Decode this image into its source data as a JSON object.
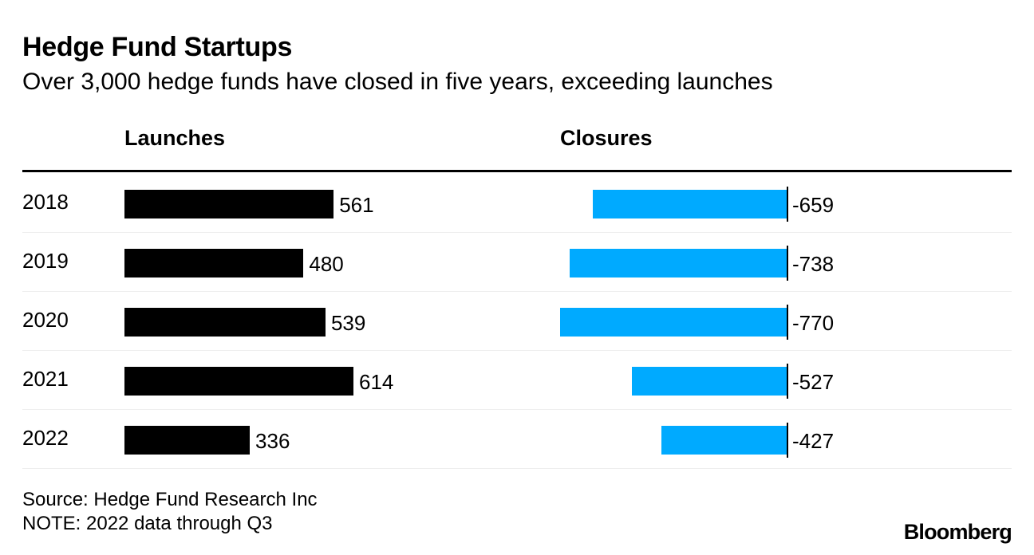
{
  "chart_data": {
    "type": "bar",
    "title": "Hedge Fund Startups",
    "subtitle": "Over 3,000 hedge funds have closed in five years, exceeding launches",
    "categories": [
      "2018",
      "2019",
      "2020",
      "2021",
      "2022"
    ],
    "series": [
      {
        "name": "Launches",
        "values": [
          561,
          480,
          539,
          614,
          336
        ],
        "color": "#000000",
        "labels": [
          "561",
          "480",
          "539",
          "614",
          "336"
        ]
      },
      {
        "name": "Closures",
        "values": [
          -659,
          -738,
          -770,
          -527,
          -427
        ],
        "color": "#00aaff",
        "labels": [
          "-659",
          "-738",
          "-770",
          "-527",
          "-427"
        ]
      }
    ],
    "xlabel": "",
    "ylabel": ""
  },
  "footer": {
    "source": "Source: Hedge Fund Research Inc",
    "note": "NOTE: 2022 data through Q3",
    "brand": "Bloomberg"
  }
}
